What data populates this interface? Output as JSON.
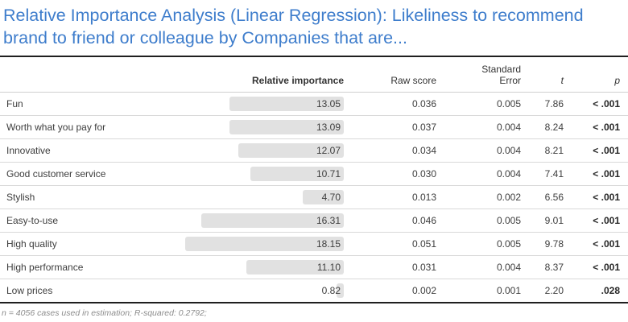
{
  "title": "Relative Importance Analysis (Linear Regression): Likeliness to recommend brand to friend or colleague by Companies that are...",
  "columns": {
    "relative_importance": "Relative importance",
    "raw_score": "Raw score",
    "standard_error_line1": "Standard",
    "standard_error_line2": "Error",
    "t": "t",
    "p": "p"
  },
  "footer": "n = 4056 cases used in estimation; R-squared: 0.2792;",
  "colors": {
    "title": "#3e7dcc",
    "bar": "#e1e1e1",
    "border_heavy": "#1f1f1f",
    "border_light": "#d9d9d9",
    "text": "#3d3d3d"
  },
  "chart_data": {
    "type": "table",
    "title": "Relative Importance Analysis (Linear Regression): Likeliness to recommend brand to friend or colleague by Companies that are...",
    "columns": [
      "",
      "Relative importance",
      "Raw score",
      "Standard Error",
      "t",
      "p"
    ],
    "rows": [
      {
        "label": "Fun",
        "relative_importance": "13.05",
        "raw_score": "0.036",
        "standard_error": "0.005",
        "t": "7.86",
        "p": "< .001"
      },
      {
        "label": "Worth what you pay for",
        "relative_importance": "13.09",
        "raw_score": "0.037",
        "standard_error": "0.004",
        "t": "8.24",
        "p": "< .001"
      },
      {
        "label": "Innovative",
        "relative_importance": "12.07",
        "raw_score": "0.034",
        "standard_error": "0.004",
        "t": "8.21",
        "p": "< .001"
      },
      {
        "label": "Good customer service",
        "relative_importance": "10.71",
        "raw_score": "0.030",
        "standard_error": "0.004",
        "t": "7.41",
        "p": "< .001"
      },
      {
        "label": "Stylish",
        "relative_importance": "4.70",
        "raw_score": "0.013",
        "standard_error": "0.002",
        "t": "6.56",
        "p": "< .001"
      },
      {
        "label": "Easy-to-use",
        "relative_importance": "16.31",
        "raw_score": "0.046",
        "standard_error": "0.005",
        "t": "9.01",
        "p": "< .001"
      },
      {
        "label": "High quality",
        "relative_importance": "18.15",
        "raw_score": "0.051",
        "standard_error": "0.005",
        "t": "9.78",
        "p": "< .001"
      },
      {
        "label": "High performance",
        "relative_importance": "11.10",
        "raw_score": "0.031",
        "standard_error": "0.004",
        "t": "8.37",
        "p": "< .001"
      },
      {
        "label": "Low prices",
        "relative_importance": "0.82",
        "raw_score": "0.002",
        "standard_error": "0.001",
        "t": "2.20",
        "p": ".028"
      }
    ],
    "layout_hints": {
      "bars": "right-aligned at common edge, width proportional to relative importance",
      "grid": "horizontal light separators only, heavy rule above header and below last row",
      "bold_columns": [
        "Relative importance header",
        "p values"
      ]
    }
  }
}
